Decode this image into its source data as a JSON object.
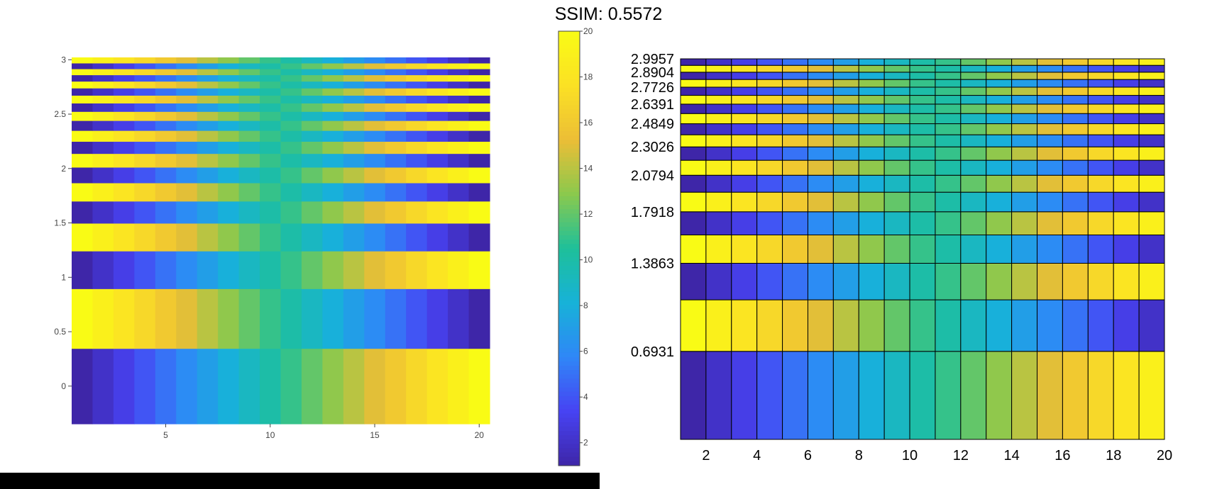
{
  "figure_title": "SSIM: 0.5572",
  "colormap_stops": [
    "#3e26a8",
    "#4743f3",
    "#2f87f7",
    "#17b2d8",
    "#1ec09a",
    "#8bc94d",
    "#ecbe36",
    "#fbe124",
    "#f9fb15"
  ],
  "chart_data": [
    {
      "type": "heatmap",
      "panel": "left",
      "title": "",
      "xlabel": "",
      "ylabel": "",
      "x": [
        1,
        2,
        3,
        4,
        5,
        6,
        7,
        8,
        9,
        10,
        11,
        12,
        13,
        14,
        15,
        16,
        17,
        18,
        19,
        20
      ],
      "y": [
        0.0,
        0.6931,
        1.0986,
        1.3863,
        1.6094,
        1.7918,
        1.9459,
        2.0794,
        2.1972,
        2.3026,
        2.3979,
        2.4849,
        2.5649,
        2.6391,
        2.7081,
        2.7726,
        2.8332,
        2.8904,
        2.9444,
        2.9957
      ],
      "z_rule": "row r (1-based): z[r][c] = c if r is odd, 21 - c if r is even",
      "xlim": [
        0.5,
        20.5
      ],
      "ylim": [
        -0.3466,
        3.0214
      ],
      "xticks": [
        5,
        10,
        15,
        20
      ],
      "yticks": [
        0,
        0.5,
        1,
        1.5,
        2,
        2.5,
        3
      ],
      "xtick_labels": [
        "5",
        "10",
        "15",
        "20"
      ],
      "ytick_labels": [
        "0",
        "0.5",
        "1",
        "1.5",
        "2",
        "2.5",
        "3"
      ],
      "colorbar": {
        "range": [
          1,
          20
        ],
        "ticks": [
          2,
          4,
          6,
          8,
          10,
          12,
          14,
          16,
          18,
          20
        ],
        "tick_labels": [
          "2",
          "4",
          "6",
          "8",
          "10",
          "12",
          "14",
          "16",
          "18",
          "20"
        ]
      }
    },
    {
      "type": "heatmap",
      "panel": "right",
      "title": "",
      "xlabel": "",
      "ylabel": "",
      "x": [
        1,
        2,
        3,
        4,
        5,
        6,
        7,
        8,
        9,
        10,
        11,
        12,
        13,
        14,
        15,
        16,
        17,
        18,
        19,
        20
      ],
      "y": [
        0.0,
        0.6931,
        1.0986,
        1.3863,
        1.6094,
        1.7918,
        1.9459,
        2.0794,
        2.1972,
        2.3026,
        2.3979,
        2.4849,
        2.5649,
        2.6391,
        2.7081,
        2.7726,
        2.8332,
        2.8904,
        2.9444,
        2.9957
      ],
      "z_rule": "row r (1-based): z[r][c] = c if r is odd, 21 - c if r is even",
      "grid": true,
      "xticks": [
        2,
        4,
        6,
        8,
        10,
        12,
        14,
        16,
        18,
        20
      ],
      "xtick_labels": [
        "2",
        "4",
        "6",
        "8",
        "10",
        "12",
        "14",
        "16",
        "18",
        "20"
      ],
      "yticks": [
        0.6931,
        1.3863,
        1.7918,
        2.0794,
        2.3026,
        2.4849,
        2.6391,
        2.7726,
        2.8904,
        2.9957
      ],
      "ytick_labels": [
        "0.6931",
        "1.3863",
        "1.7918",
        "2.0794",
        "2.3026",
        "2.4849",
        "2.6391",
        "2.7726",
        "2.8904",
        "2.9957"
      ]
    }
  ]
}
